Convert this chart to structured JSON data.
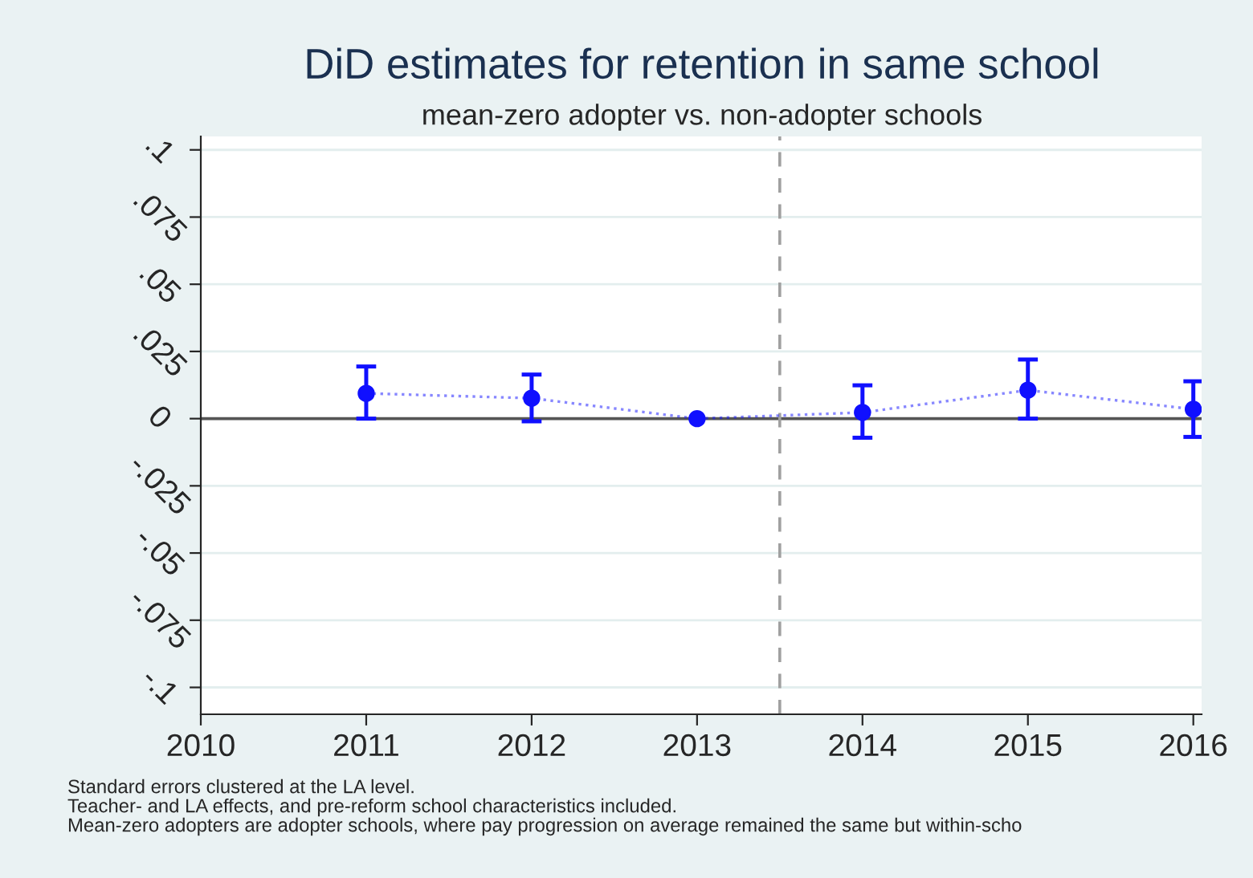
{
  "chart_data": {
    "type": "line",
    "title": "DiD estimates for retention in same school",
    "subtitle": "mean-zero adopter vs. non-adopter schools",
    "x": [
      2011,
      2012,
      2013,
      2014,
      2015,
      2016
    ],
    "series": [
      {
        "color": "#1010ff",
        "values": [
          0.0094,
          0.0076,
          0,
          0.0023,
          0.0106,
          0.0035
        ],
        "errors": [
          [
            0,
            0.0194
          ],
          [
            -0.001,
            0.0164
          ],
          null,
          [
            -0.0071,
            0.0124
          ],
          [
            0,
            0.022
          ],
          [
            -0.0068,
            0.0139
          ]
        ]
      }
    ],
    "marker": "circle",
    "line_style": "dotted",
    "xlim": [
      2010,
      2016.05
    ],
    "xticks": [
      2010,
      2011,
      2012,
      2013,
      2014,
      2015,
      2016
    ],
    "ylim": [
      -0.11,
      0.105
    ],
    "yticks": [
      {
        "value": -0.1,
        "label": "-.1"
      },
      {
        "value": -0.075,
        "label": "-.075"
      },
      {
        "value": -0.05,
        "label": "-.05"
      },
      {
        "value": -0.025,
        "label": "-.025"
      },
      0,
      {
        "value": 0.025,
        "label": ".025"
      },
      {
        "value": 0.05,
        "label": ".05"
      },
      {
        "value": 0.075,
        "label": ".075"
      },
      {
        "value": 0.1,
        "label": ".1"
      }
    ],
    "grid": "y",
    "ref_lines": [
      {
        "axis": "y",
        "value": 0,
        "color": "#555555",
        "line_style": "solid"
      },
      {
        "axis": "x",
        "value": 2013.5,
        "color": "#a0a0a0",
        "line_style": "dashed"
      }
    ],
    "annotations": [
      "Standard errors clustered at the LA level.",
      "Teacher- and LA effects, and pre-reform school characteristics included.",
      "Mean-zero adopters are adopter schools, where pay progression on average remained the same but within-scho"
    ]
  }
}
